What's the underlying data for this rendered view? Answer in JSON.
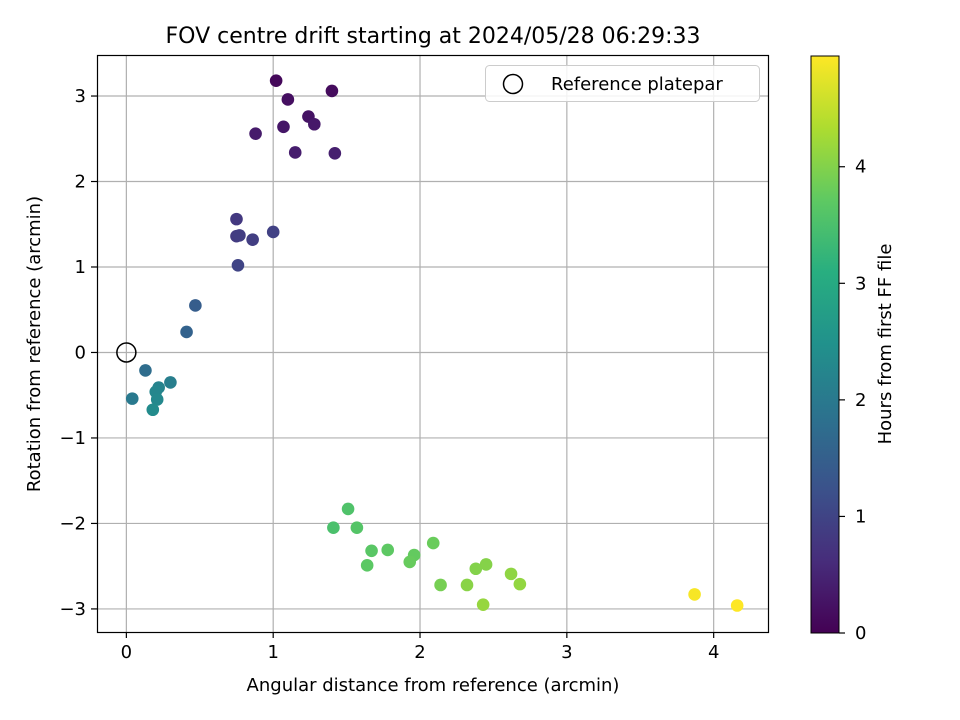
{
  "chart_data": {
    "type": "scatter",
    "title": "FOV centre drift starting at 2024/05/28 06:29:33",
    "xlabel": "Angular distance from reference (arcmin)",
    "ylabel": "Rotation from reference (arcmin)",
    "xlim": [
      -0.2,
      4.37
    ],
    "ylim": [
      -3.27,
      3.48
    ],
    "xticks": [
      0,
      1,
      2,
      3,
      4
    ],
    "yticks": [
      -3,
      -2,
      -1,
      0,
      1,
      2,
      3
    ],
    "xtick_labels": [
      "0",
      "1",
      "2",
      "3",
      "4"
    ],
    "ytick_labels": [
      "−3",
      "−2",
      "−1",
      "0",
      "1",
      "2",
      "3"
    ],
    "grid": true,
    "legend": {
      "position": "top-right",
      "entries": [
        "Reference platepar"
      ]
    },
    "reference_point": {
      "x": 0,
      "y": 0
    },
    "colorbar": {
      "label": "Hours from first FF file",
      "colormap": "viridis",
      "range": [
        0,
        4.95
      ],
      "ticks": [
        0,
        1,
        2,
        3,
        4
      ],
      "tick_labels": [
        "0",
        "1",
        "2",
        "3",
        "4"
      ]
    },
    "points": [
      {
        "x": 1.02,
        "y": 3.18,
        "hours": 0.1
      },
      {
        "x": 1.4,
        "y": 3.06,
        "hours": 0.15
      },
      {
        "x": 1.1,
        "y": 2.96,
        "hours": 0.2
      },
      {
        "x": 1.24,
        "y": 2.76,
        "hours": 0.25
      },
      {
        "x": 1.07,
        "y": 2.64,
        "hours": 0.3
      },
      {
        "x": 1.28,
        "y": 2.67,
        "hours": 0.33
      },
      {
        "x": 0.88,
        "y": 2.56,
        "hours": 0.36
      },
      {
        "x": 1.15,
        "y": 2.34,
        "hours": 0.4
      },
      {
        "x": 1.42,
        "y": 2.33,
        "hours": 0.42
      },
      {
        "x": 0.75,
        "y": 1.56,
        "hours": 0.8
      },
      {
        "x": 0.75,
        "y": 1.36,
        "hours": 0.85
      },
      {
        "x": 0.77,
        "y": 1.37,
        "hours": 0.88
      },
      {
        "x": 0.86,
        "y": 1.32,
        "hours": 0.9
      },
      {
        "x": 1.0,
        "y": 1.41,
        "hours": 0.95
      },
      {
        "x": 0.76,
        "y": 1.02,
        "hours": 1.0
      },
      {
        "x": 0.47,
        "y": 0.55,
        "hours": 1.45
      },
      {
        "x": 0.41,
        "y": 0.24,
        "hours": 1.55
      },
      {
        "x": 0.13,
        "y": -0.21,
        "hours": 1.75
      },
      {
        "x": 0.04,
        "y": -0.54,
        "hours": 2.0
      },
      {
        "x": 0.3,
        "y": -0.35,
        "hours": 2.1
      },
      {
        "x": 0.22,
        "y": -0.41,
        "hours": 2.2
      },
      {
        "x": 0.2,
        "y": -0.46,
        "hours": 2.25
      },
      {
        "x": 0.21,
        "y": -0.55,
        "hours": 2.3
      },
      {
        "x": 0.18,
        "y": -0.67,
        "hours": 2.35
      },
      {
        "x": 1.41,
        "y": -2.05,
        "hours": 3.5
      },
      {
        "x": 1.51,
        "y": -1.83,
        "hours": 3.55
      },
      {
        "x": 1.57,
        "y": -2.05,
        "hours": 3.6
      },
      {
        "x": 1.67,
        "y": -2.32,
        "hours": 3.65
      },
      {
        "x": 1.64,
        "y": -2.49,
        "hours": 3.68
      },
      {
        "x": 1.78,
        "y": -2.31,
        "hours": 3.7
      },
      {
        "x": 1.96,
        "y": -2.37,
        "hours": 3.75
      },
      {
        "x": 1.93,
        "y": -2.45,
        "hours": 3.78
      },
      {
        "x": 2.09,
        "y": -2.23,
        "hours": 3.8
      },
      {
        "x": 2.14,
        "y": -2.72,
        "hours": 3.9
      },
      {
        "x": 2.38,
        "y": -2.53,
        "hours": 4.0
      },
      {
        "x": 2.45,
        "y": -2.48,
        "hours": 4.02
      },
      {
        "x": 2.32,
        "y": -2.72,
        "hours": 4.05
      },
      {
        "x": 2.62,
        "y": -2.59,
        "hours": 4.1
      },
      {
        "x": 2.68,
        "y": -2.71,
        "hours": 4.12
      },
      {
        "x": 2.43,
        "y": -2.95,
        "hours": 4.15
      },
      {
        "x": 3.87,
        "y": -2.83,
        "hours": 4.9
      },
      {
        "x": 4.16,
        "y": -2.96,
        "hours": 4.95
      }
    ]
  }
}
